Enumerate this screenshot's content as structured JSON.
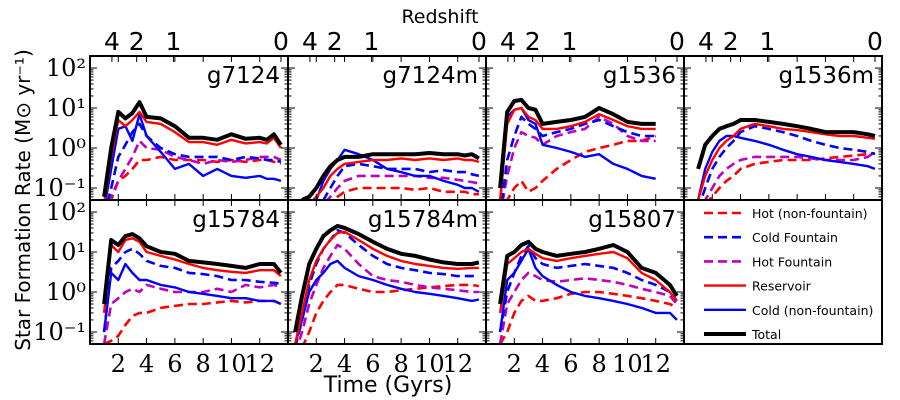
{
  "chart_data": {
    "type": "line",
    "figure_ylabel": "Star Formation Rate (M⊙ yr⁻¹)",
    "figure_xlabel": "Time (Gyrs)",
    "top_axis_label": "Redshift",
    "xlim": [
      0,
      14
    ],
    "ylim": [
      0.05,
      200
    ],
    "yscale": "log",
    "x_ticks": [
      2,
      4,
      6,
      8,
      10,
      12
    ],
    "x_tick_labels": [
      "2",
      "4",
      "6",
      "8",
      "10",
      "12"
    ],
    "y_ticks": [
      0.1,
      1,
      10,
      100
    ],
    "y_tick_labels": [
      "10⁻¹",
      "10⁰",
      "10¹",
      "10²"
    ],
    "redshift_ticks": [
      {
        "label": "4",
        "time": 1.55
      },
      {
        "label": "2",
        "time": 3.3
      },
      {
        "label": "1",
        "time": 5.9
      },
      {
        "label": "0",
        "time": 13.7
      }
    ],
    "legend": {
      "placement": "bottom-right panel",
      "entries": [
        {
          "key": "hot",
          "label": "Hot (non-fountain)",
          "color": "#ff0000",
          "dash": "dashed"
        },
        {
          "key": "coldf",
          "label": "Cold Fountain",
          "color": "#0000ff",
          "dash": "dashed"
        },
        {
          "key": "hotf",
          "label": "Hot Fountain",
          "color": "#bf00bf",
          "dash": "dashed"
        },
        {
          "key": "res",
          "label": "Reservoir",
          "color": "#ff0000",
          "dash": "solid"
        },
        {
          "key": "cold",
          "label": "Cold (non-fountain)",
          "color": "#0000ff",
          "dash": "solid"
        },
        {
          "key": "total",
          "label": "Total",
          "color": "#000000",
          "dash": "solid-thick"
        }
      ]
    },
    "panels": [
      {
        "title": "g7124",
        "x": [
          1.0,
          1.5,
          2.0,
          2.5,
          3.0,
          3.5,
          4.0,
          5.0,
          6.0,
          7.0,
          8.0,
          9.0,
          10.0,
          11.0,
          12.0,
          12.5,
          13.0,
          13.5
        ],
        "series": {
          "total": [
            0.06,
            1.0,
            8.0,
            5.5,
            7.5,
            14.0,
            6.0,
            5.5,
            3.5,
            1.8,
            1.8,
            1.6,
            2.2,
            1.7,
            1.8,
            1.6,
            2.2,
            1.2
          ],
          "res": [
            0.04,
            0.6,
            5.0,
            3.5,
            5.0,
            8.0,
            4.5,
            4.0,
            2.5,
            1.4,
            1.4,
            1.2,
            1.6,
            1.3,
            1.4,
            1.3,
            1.8,
            1.0
          ],
          "cold": [
            0.03,
            0.3,
            3.0,
            3.5,
            1.5,
            7.0,
            2.0,
            0.8,
            0.3,
            0.4,
            0.2,
            0.3,
            0.2,
            0.18,
            0.2,
            0.17,
            0.17,
            0.15
          ],
          "coldf": [
            0.02,
            0.1,
            0.6,
            1.2,
            2.5,
            4.0,
            2.0,
            1.0,
            0.7,
            0.6,
            0.6,
            0.6,
            0.5,
            0.6,
            0.55,
            0.5,
            0.5,
            0.45
          ],
          "hotf": [
            0.02,
            0.06,
            0.15,
            0.3,
            0.6,
            1.5,
            1.0,
            0.9,
            0.6,
            0.5,
            0.4,
            0.5,
            0.45,
            0.5,
            0.6,
            0.6,
            0.6,
            0.5
          ],
          "hot": [
            0.02,
            0.05,
            0.15,
            0.2,
            0.3,
            0.5,
            0.5,
            0.6,
            0.5,
            0.5,
            0.5,
            0.45,
            0.5,
            0.45,
            0.5,
            0.5,
            0.45,
            0.4
          ]
        }
      },
      {
        "title": "g7124m",
        "x": [
          1.0,
          1.5,
          2.0,
          2.5,
          3.0,
          3.5,
          4.0,
          5.0,
          6.0,
          7.0,
          8.0,
          9.0,
          10.0,
          11.0,
          12.0,
          12.5,
          13.0,
          13.5
        ],
        "series": {
          "total": [
            0.05,
            0.06,
            0.1,
            0.2,
            0.35,
            0.5,
            0.6,
            0.6,
            0.7,
            0.7,
            0.7,
            0.7,
            0.75,
            0.7,
            0.7,
            0.65,
            0.7,
            0.55
          ],
          "res": [
            0.03,
            0.04,
            0.06,
            0.1,
            0.2,
            0.3,
            0.4,
            0.45,
            0.5,
            0.5,
            0.55,
            0.5,
            0.55,
            0.5,
            0.55,
            0.5,
            0.5,
            0.45
          ],
          "cold": [
            0.02,
            0.03,
            0.05,
            0.15,
            0.3,
            0.5,
            0.9,
            0.7,
            0.5,
            0.3,
            0.25,
            0.2,
            0.2,
            0.15,
            0.12,
            0.1,
            0.1,
            0.08
          ],
          "coldf": [
            0.02,
            0.02,
            0.03,
            0.05,
            0.1,
            0.2,
            0.35,
            0.4,
            0.35,
            0.3,
            0.3,
            0.3,
            0.25,
            0.28,
            0.25,
            0.25,
            0.22,
            0.2
          ],
          "hotf": [
            0.02,
            0.02,
            0.03,
            0.04,
            0.06,
            0.1,
            0.15,
            0.2,
            0.2,
            0.2,
            0.2,
            0.2,
            0.18,
            0.18,
            0.16,
            0.15,
            0.14,
            0.13
          ],
          "hot": [
            0.02,
            0.02,
            0.02,
            0.03,
            0.04,
            0.06,
            0.08,
            0.1,
            0.1,
            0.1,
            0.1,
            0.09,
            0.1,
            0.08,
            0.08,
            0.08,
            0.07,
            0.07
          ]
        }
      },
      {
        "title": "g1536",
        "x": [
          1.0,
          1.5,
          2.0,
          2.5,
          3.0,
          3.5,
          4.0,
          5.0,
          6.0,
          7.0,
          8.0,
          9.0,
          10.0,
          11.0,
          12.0
        ],
        "series": {
          "total": [
            0.1,
            8.0,
            15.0,
            16.0,
            10.0,
            9.0,
            4.0,
            4.5,
            5.0,
            6.0,
            10.0,
            7.0,
            4.5,
            4.0,
            4.0
          ],
          "res": [
            0.05,
            4.0,
            9.0,
            10.0,
            6.0,
            5.0,
            3.0,
            3.0,
            3.5,
            4.5,
            7.0,
            5.0,
            3.5,
            3.0,
            3.0
          ],
          "cold": [
            0.04,
            6.0,
            9.0,
            10.0,
            5.0,
            4.0,
            1.2,
            1.0,
            0.8,
            0.6,
            0.7,
            0.4,
            0.3,
            0.2,
            0.17
          ],
          "coldf": [
            0.02,
            0.5,
            2.0,
            6.0,
            4.0,
            3.0,
            2.0,
            2.5,
            3.0,
            4.0,
            5.0,
            3.5,
            2.5,
            2.0,
            2.0
          ],
          "hotf": [
            0.02,
            0.2,
            1.0,
            2.5,
            2.0,
            1.8,
            1.2,
            2.0,
            2.5,
            3.0,
            6.0,
            4.0,
            2.0,
            1.5,
            1.5
          ],
          "hot": [
            0.02,
            0.05,
            0.1,
            0.15,
            0.08,
            0.1,
            0.15,
            0.3,
            0.5,
            0.8,
            1.0,
            1.2,
            1.5,
            1.5,
            2.0
          ]
        }
      },
      {
        "title": "g1536m",
        "x": [
          1.0,
          1.5,
          2.0,
          2.5,
          3.0,
          3.5,
          4.0,
          5.0,
          6.0,
          7.0,
          8.0,
          9.0,
          10.0,
          11.0,
          12.0,
          13.0,
          13.5
        ],
        "series": {
          "total": [
            0.3,
            1.2,
            2.0,
            3.0,
            3.5,
            4.0,
            5.0,
            5.0,
            4.5,
            4.0,
            3.5,
            3.0,
            2.5,
            2.5,
            2.5,
            2.2,
            2.0
          ],
          "res": [
            0.05,
            0.2,
            0.5,
            1.0,
            1.5,
            2.0,
            3.0,
            4.0,
            3.5,
            3.0,
            2.8,
            2.5,
            2.2,
            2.0,
            2.0,
            1.8,
            1.7
          ],
          "cold": [
            0.05,
            0.3,
            0.8,
            1.5,
            2.0,
            2.0,
            1.8,
            1.5,
            1.2,
            0.9,
            0.7,
            0.6,
            0.5,
            0.45,
            0.4,
            0.35,
            0.3
          ],
          "coldf": [
            0.03,
            0.1,
            0.3,
            0.6,
            1.0,
            1.5,
            2.5,
            3.5,
            3.0,
            2.5,
            2.0,
            1.5,
            1.2,
            1.0,
            0.9,
            0.8,
            0.7
          ],
          "hotf": [
            0.02,
            0.05,
            0.1,
            0.2,
            0.3,
            0.4,
            0.5,
            0.6,
            0.6,
            0.6,
            0.6,
            0.55,
            0.5,
            0.5,
            0.5,
            0.6,
            0.8
          ],
          "hot": [
            0.02,
            0.04,
            0.06,
            0.1,
            0.15,
            0.2,
            0.3,
            0.4,
            0.45,
            0.5,
            0.5,
            0.5,
            0.55,
            0.6,
            0.65,
            0.7,
            0.75
          ]
        }
      },
      {
        "title": "g15784",
        "x": [
          1.0,
          1.5,
          2.0,
          2.5,
          3.0,
          3.5,
          4.0,
          5.0,
          6.0,
          7.0,
          8.0,
          9.0,
          10.0,
          11.0,
          12.0,
          13.0,
          13.5
        ],
        "series": {
          "total": [
            0.5,
            20.0,
            15.0,
            25.0,
            28.0,
            22.0,
            14.0,
            10.0,
            9.0,
            6.0,
            5.5,
            5.0,
            4.5,
            4.0,
            5.0,
            5.0,
            3.0
          ],
          "res": [
            0.3,
            15.0,
            10.0,
            20.0,
            22.0,
            18.0,
            10.0,
            8.0,
            6.5,
            5.0,
            4.0,
            3.5,
            3.2,
            3.0,
            3.5,
            3.5,
            2.5
          ],
          "cold": [
            0.1,
            3.0,
            2.0,
            5.0,
            3.0,
            2.0,
            2.0,
            1.5,
            1.3,
            1.0,
            0.9,
            0.8,
            0.7,
            0.7,
            0.6,
            0.6,
            0.5
          ],
          "coldf": [
            0.1,
            4.0,
            6.0,
            10.0,
            12.0,
            9.0,
            6.0,
            4.5,
            4.0,
            3.0,
            2.8,
            2.5,
            2.0,
            2.0,
            1.8,
            1.7,
            1.6
          ],
          "hotf": [
            0.05,
            0.5,
            0.7,
            1.0,
            1.2,
            1.0,
            1.5,
            1.2,
            1.0,
            1.0,
            1.0,
            1.2,
            1.0,
            1.5,
            1.3,
            1.5,
            1.3
          ],
          "hot": [
            0.05,
            0.06,
            0.08,
            0.15,
            0.25,
            0.3,
            0.3,
            0.4,
            0.45,
            0.5,
            0.5,
            0.55,
            0.6,
            0.55,
            0.6,
            0.6,
            0.5
          ]
        }
      },
      {
        "title": "g15784m",
        "x": [
          0.5,
          1.0,
          1.5,
          2.0,
          2.5,
          3.0,
          3.5,
          4.0,
          5.0,
          6.0,
          7.0,
          8.0,
          9.0,
          10.0,
          11.0,
          12.0,
          13.0,
          13.5
        ],
        "series": {
          "total": [
            0.1,
            0.8,
            5.0,
            12.0,
            25.0,
            35.0,
            45.0,
            40.0,
            28.0,
            18.0,
            12.0,
            9.0,
            8.0,
            6.5,
            5.5,
            5.0,
            5.0,
            5.5
          ],
          "res": [
            0.05,
            0.3,
            2.0,
            6.0,
            12.0,
            20.0,
            30.0,
            32.0,
            20.0,
            12.0,
            8.0,
            6.0,
            5.0,
            4.5,
            4.0,
            3.8,
            4.0,
            4.0
          ],
          "cold": [
            0.05,
            0.2,
            1.0,
            2.0,
            3.0,
            5.0,
            6.0,
            4.0,
            2.5,
            2.0,
            1.5,
            1.2,
            1.0,
            0.9,
            0.8,
            0.7,
            0.6,
            0.65
          ],
          "coldf": [
            0.04,
            0.2,
            1.5,
            5.0,
            12.0,
            20.0,
            35.0,
            30.0,
            15.0,
            8.0,
            5.0,
            4.0,
            3.5,
            3.0,
            2.8,
            2.5,
            2.5,
            2.6
          ],
          "hotf": [
            0.03,
            0.1,
            0.5,
            1.5,
            4.0,
            8.0,
            15.0,
            12.0,
            5.0,
            2.5,
            2.0,
            1.8,
            1.5,
            1.3,
            1.2,
            1.1,
            1.0,
            1.0
          ],
          "hot": [
            0.02,
            0.04,
            0.1,
            0.3,
            0.6,
            1.0,
            1.5,
            1.5,
            1.2,
            1.0,
            1.0,
            1.1,
            1.2,
            1.3,
            1.4,
            1.5,
            1.5,
            1.4
          ]
        }
      },
      {
        "title": "g15807",
        "x": [
          1.0,
          1.5,
          2.0,
          2.5,
          3.0,
          3.5,
          4.0,
          5.0,
          6.0,
          7.0,
          8.0,
          9.0,
          10.0,
          11.0,
          12.0,
          13.0,
          13.5
        ],
        "series": {
          "total": [
            0.5,
            8.0,
            10.0,
            15.0,
            18.0,
            12.0,
            10.0,
            8.0,
            9.0,
            10.0,
            12.0,
            15.0,
            10.0,
            4.0,
            3.0,
            1.5,
            0.8
          ],
          "res": [
            0.3,
            5.0,
            7.0,
            10.0,
            12.0,
            9.0,
            7.0,
            6.0,
            7.0,
            8.0,
            9.0,
            10.0,
            7.0,
            3.0,
            2.0,
            1.0,
            0.6
          ],
          "cold": [
            0.1,
            2.0,
            3.0,
            6.0,
            12.0,
            4.0,
            2.5,
            1.5,
            1.0,
            0.8,
            0.7,
            0.6,
            0.5,
            0.4,
            0.3,
            0.3,
            0.2
          ],
          "coldf": [
            0.1,
            1.0,
            3.0,
            8.0,
            14.0,
            7.0,
            5.0,
            4.0,
            4.5,
            5.0,
            4.5,
            4.0,
            3.0,
            2.0,
            1.5,
            1.0,
            0.6
          ],
          "hotf": [
            0.05,
            0.5,
            1.0,
            2.0,
            3.0,
            2.5,
            2.0,
            1.8,
            2.0,
            2.2,
            2.0,
            1.8,
            1.5,
            1.2,
            1.0,
            0.8,
            0.5
          ],
          "hot": [
            0.05,
            0.1,
            0.3,
            0.6,
            0.8,
            0.6,
            0.6,
            0.7,
            0.9,
            1.0,
            1.0,
            0.9,
            0.8,
            0.7,
            0.6,
            0.5,
            0.4
          ]
        }
      }
    ]
  }
}
